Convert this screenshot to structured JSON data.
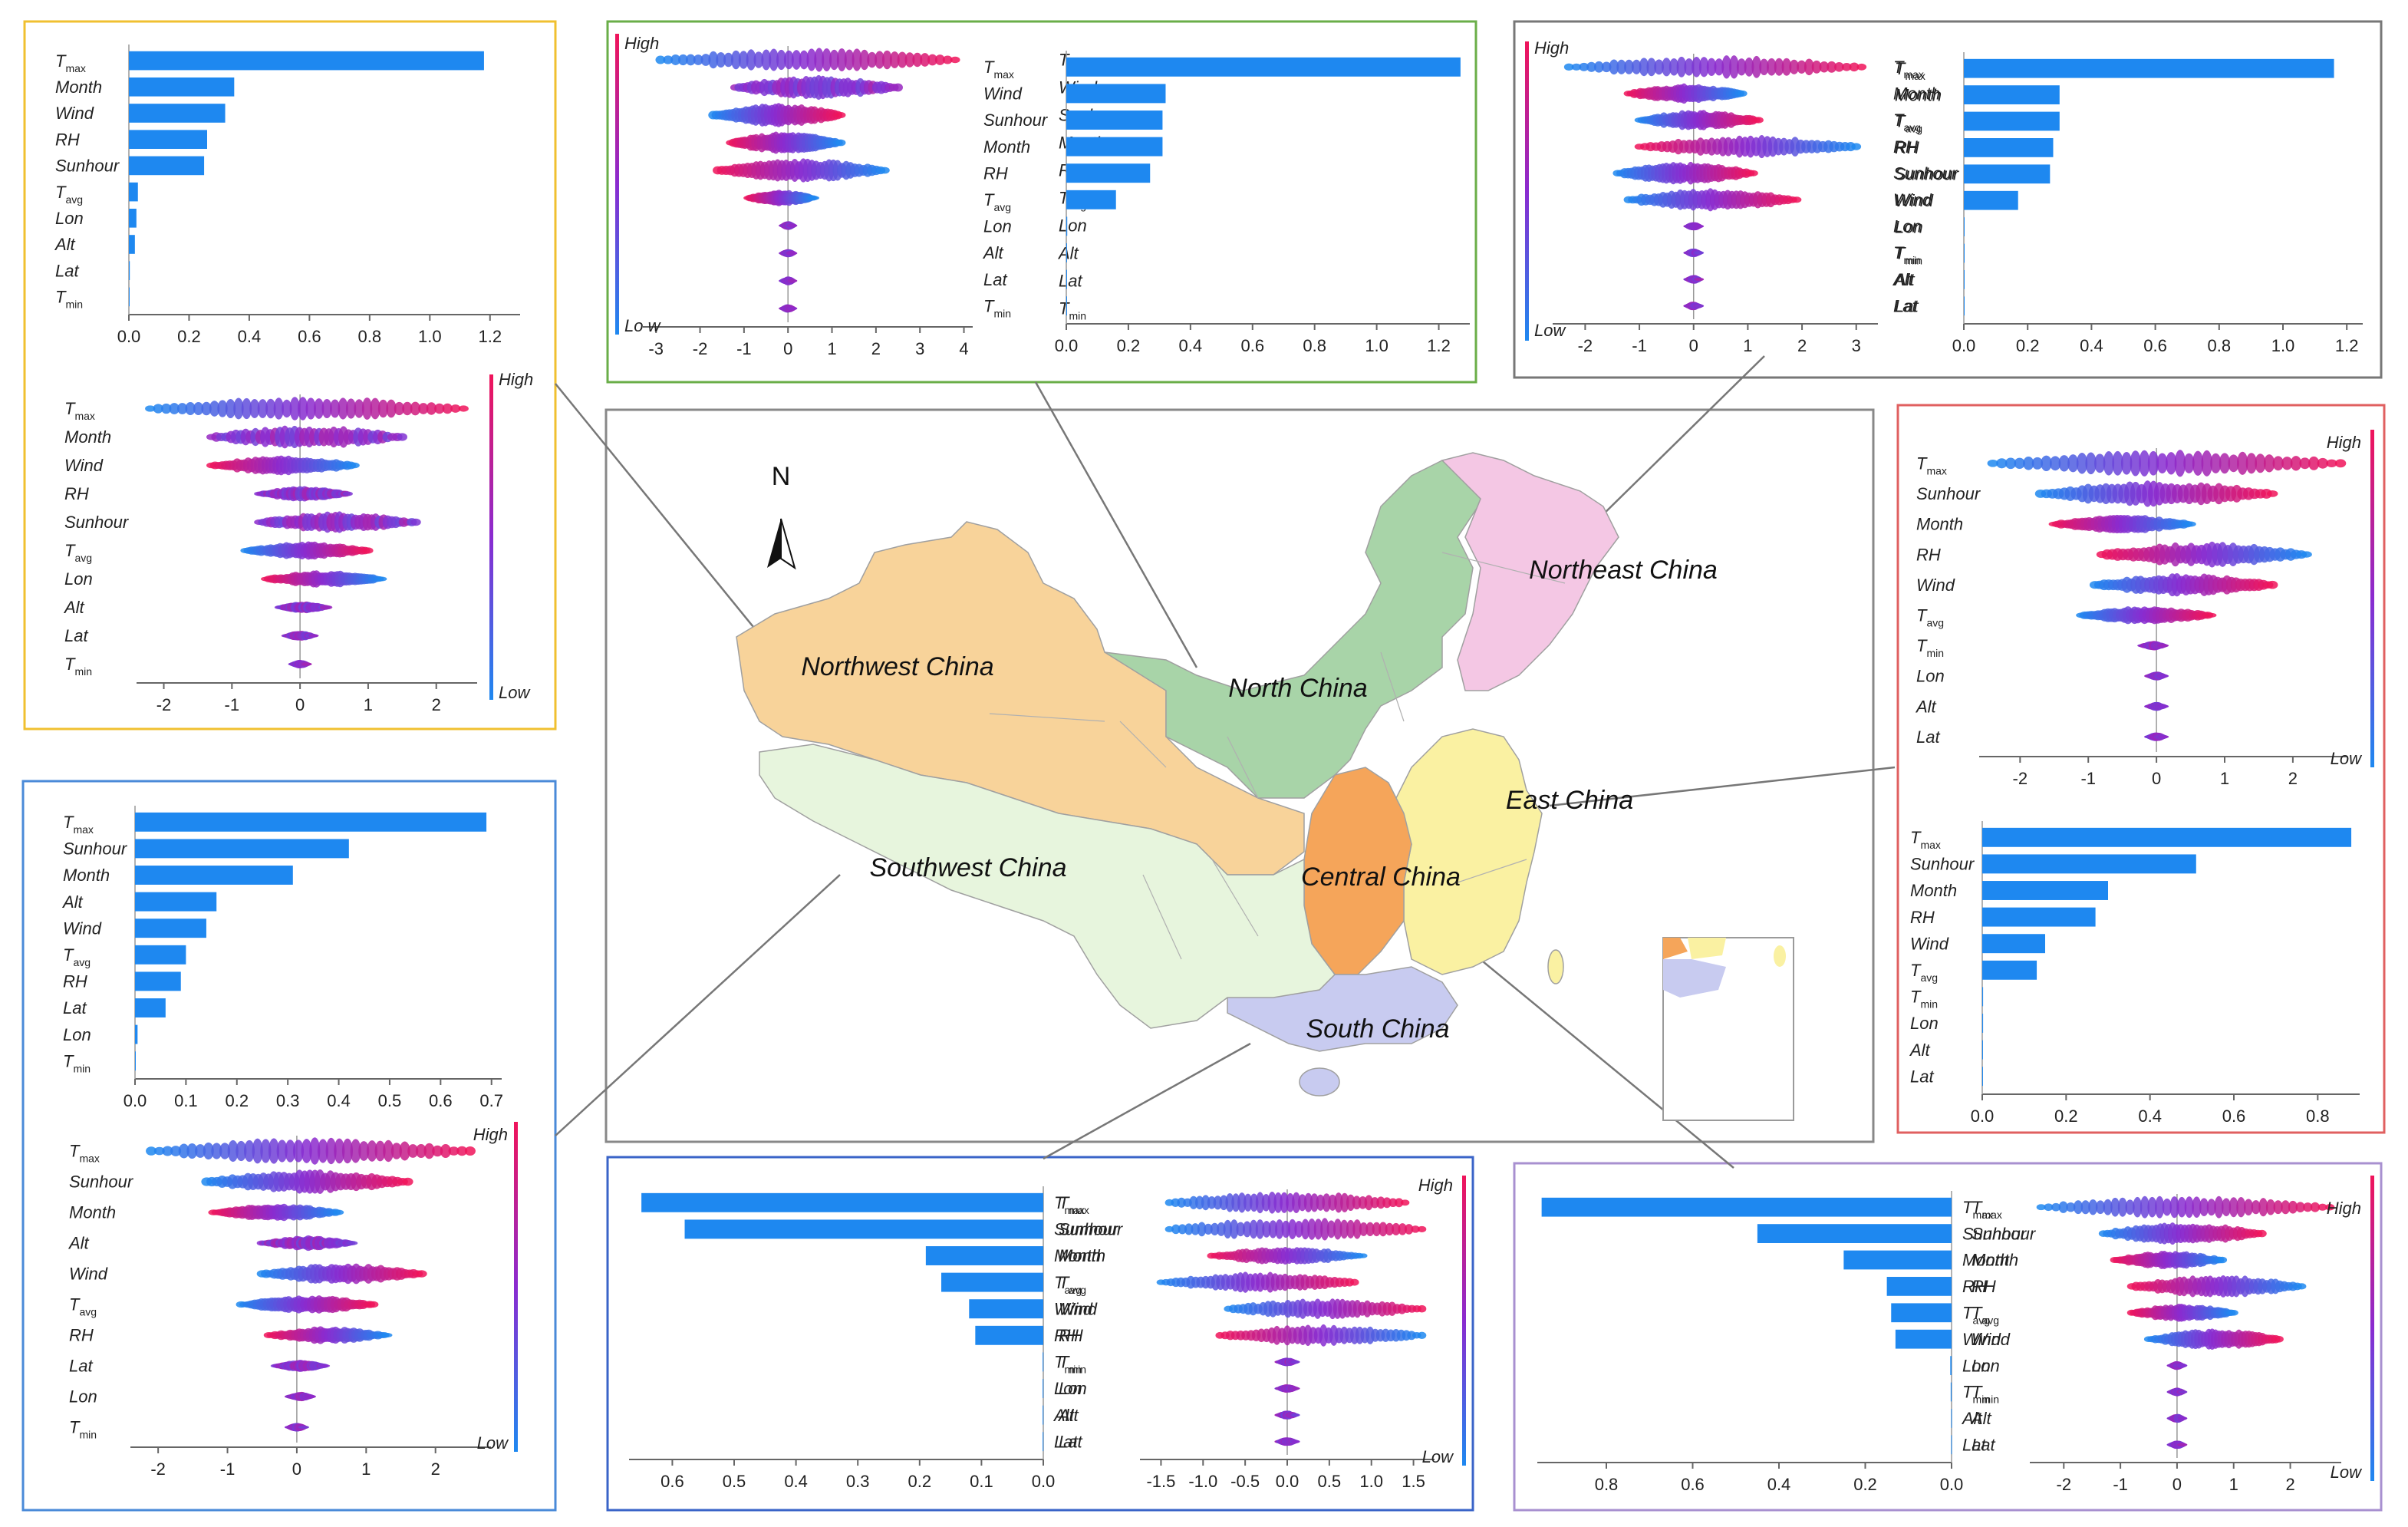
{
  "colors": {
    "bar": "#1E88F0",
    "shap_low": "#1E88F0",
    "shap_high": "#F0145A",
    "frame_northwest": "#F0C030",
    "frame_north": "#6AAE48",
    "frame_northeast": "#777777",
    "frame_east": "#E06060",
    "frame_southwest": "#4A8AD8",
    "frame_south": "#3A64C8",
    "frame_central": "#A890D0",
    "map_frame": "#888888",
    "connector": "#777777",
    "region_northwest": "#F8D39A",
    "region_north": "#A8D4A8",
    "region_northeast": "#F4C7E4",
    "region_east": "#FAF1A2",
    "region_central": "#F5A55A",
    "region_south": "#C8CBF0",
    "region_southwest": "#E7F5DD"
  },
  "legend": {
    "high": "High",
    "low": "Low",
    "low_split": "Lo w"
  },
  "map": {
    "north_arrow": "N",
    "regions": [
      {
        "key": "northwest",
        "label": "Northwest China",
        "color_key": "region_northwest"
      },
      {
        "key": "north",
        "label": "North China",
        "color_key": "region_north"
      },
      {
        "key": "northeast",
        "label": "Northeast China",
        "color_key": "region_northeast"
      },
      {
        "key": "east",
        "label": "East China",
        "color_key": "region_east"
      },
      {
        "key": "central",
        "label": "Central China",
        "color_key": "region_central"
      },
      {
        "key": "south",
        "label": "South China",
        "color_key": "region_south"
      },
      {
        "key": "southwest",
        "label": "Southwest China",
        "color_key": "region_southwest"
      }
    ]
  },
  "chart_data": [
    {
      "type": "bar",
      "region": "Northwest China",
      "title": "",
      "orientation": "horizontal",
      "categories": [
        "T_max",
        "Month",
        "Wind",
        "RH",
        "Sunhour",
        "T_avg",
        "Lon",
        "Alt",
        "Lat",
        "T_min"
      ],
      "values": [
        1.18,
        0.35,
        0.32,
        0.26,
        0.25,
        0.03,
        0.025,
        0.02,
        0.003,
        0.002
      ],
      "xlim": [
        0,
        1.3
      ],
      "xticks": [
        "0.0",
        "0.2",
        "0.4",
        "0.6",
        "0.8",
        "1.0",
        "1.2"
      ],
      "xlabel": "",
      "ylabel": ""
    },
    {
      "type": "scatter",
      "region": "Northwest China",
      "subtype": "shap-beeswarm",
      "categories": [
        "T_max",
        "Month",
        "Wind",
        "RH",
        "Sunhour",
        "T_avg",
        "Lon",
        "Alt",
        "Lat",
        "T_min"
      ],
      "ranges": [
        [
          -2.2,
          2.4
        ],
        [
          -1.3,
          1.5
        ],
        [
          -1.3,
          0.8
        ],
        [
          -0.6,
          0.7
        ],
        [
          -0.6,
          1.7
        ],
        [
          -0.8,
          1.0
        ],
        [
          -0.5,
          1.2
        ],
        [
          -0.3,
          0.4
        ],
        [
          -0.2,
          0.2
        ],
        [
          -0.1,
          0.1
        ]
      ],
      "low_high": [
        "low-high",
        "mixed",
        "high-low",
        "mixed",
        "mixed",
        "low-high",
        "high-low",
        "mixed",
        "mixed",
        "mixed"
      ],
      "xlim": [
        -2.4,
        2.6
      ],
      "xticks": [
        "-2",
        "-1",
        "0",
        "1",
        "2"
      ],
      "colorbar": [
        "High",
        "Low"
      ]
    },
    {
      "type": "scatter",
      "region": "North China",
      "subtype": "shap-beeswarm",
      "categories": [
        "T_max",
        "Wind",
        "Sunhour",
        "Month",
        "RH",
        "T_avg",
        "Lon",
        "Alt",
        "Lat",
        "T_min"
      ],
      "ranges": [
        [
          -2.9,
          3.8
        ],
        [
          -1.2,
          2.5
        ],
        [
          -1.7,
          1.2
        ],
        [
          -1.3,
          1.2
        ],
        [
          -1.6,
          2.2
        ],
        [
          -0.9,
          0.6
        ],
        [
          -0.1,
          0.1
        ],
        [
          -0.1,
          0.1
        ],
        [
          -0.1,
          0.1
        ],
        [
          -0.1,
          0.1
        ]
      ],
      "low_high": [
        "low-high",
        "mixed",
        "low-high",
        "high-low",
        "high-low",
        "high-low",
        "mixed",
        "mixed",
        "mixed",
        "mixed"
      ],
      "xlim": [
        -3.3,
        4.2
      ],
      "xticks": [
        "-3",
        "-2",
        "-1",
        "0",
        "1",
        "2",
        "3",
        "4"
      ],
      "colorbar": [
        "High",
        "Lo w"
      ]
    },
    {
      "type": "bar",
      "region": "North China",
      "orientation": "horizontal",
      "categories": [
        "T_max",
        "Wind",
        "Sunhour",
        "Month",
        "RH",
        "T_avg",
        "Lon",
        "Alt",
        "Lat",
        "T_min"
      ],
      "values": [
        1.27,
        0.32,
        0.31,
        0.31,
        0.27,
        0.16,
        0.003,
        0.002,
        0.002,
        0.001
      ],
      "xlim": [
        0,
        1.3
      ],
      "xticks": [
        "0.0",
        "0.2",
        "0.4",
        "0.6",
        "0.8",
        "1.0",
        "1.2"
      ],
      "xlabel": "",
      "ylabel": ""
    },
    {
      "type": "scatter",
      "region": "Northeast China",
      "subtype": "shap-beeswarm",
      "categories": [
        "T_max",
        "Month",
        "T_avg",
        "RH",
        "Sunhour",
        "Wind",
        "Lon",
        "T_min",
        "Alt",
        "Lat"
      ],
      "ranges": [
        [
          -2.3,
          3.1
        ],
        [
          -1.2,
          0.9
        ],
        [
          -1.0,
          1.2
        ],
        [
          -1.0,
          3.0
        ],
        [
          -1.4,
          1.1
        ],
        [
          -1.2,
          1.9
        ],
        [
          -0.1,
          0.1
        ],
        [
          -0.1,
          0.1
        ],
        [
          -0.1,
          0.1
        ],
        [
          -0.1,
          0.1
        ]
      ],
      "low_high": [
        "low-high",
        "high-low",
        "low-high",
        "high-low",
        "low-high",
        "low-high",
        "mixed",
        "mixed",
        "mixed",
        "mixed"
      ],
      "xlim": [
        -2.6,
        3.4
      ],
      "xticks": [
        "-2",
        "-1",
        "0",
        "1",
        "2",
        "3"
      ],
      "colorbar": [
        "High",
        "Low"
      ]
    },
    {
      "type": "bar",
      "region": "Northeast China",
      "orientation": "horizontal",
      "categories": [
        "T_max",
        "Month",
        "T_avg",
        "RH",
        "Sunhour",
        "Wind",
        "Lon",
        "T_min",
        "Alt",
        "Lat"
      ],
      "values": [
        1.16,
        0.3,
        0.3,
        0.28,
        0.27,
        0.17,
        0.002,
        0.002,
        0.001,
        0.001
      ],
      "xlim": [
        0,
        1.25
      ],
      "xticks": [
        "0.0",
        "0.2",
        "0.4",
        "0.6",
        "0.8",
        "1.0",
        "1.2"
      ],
      "xlabel": "",
      "ylabel": ""
    },
    {
      "type": "scatter",
      "region": "East China",
      "subtype": "shap-beeswarm",
      "categories": [
        "T_max",
        "Sunhour",
        "Month",
        "RH",
        "Wind",
        "T_avg",
        "T_min",
        "Lon",
        "Alt",
        "Lat"
      ],
      "ranges": [
        [
          -2.4,
          2.7
        ],
        [
          -1.7,
          1.7
        ],
        [
          -1.5,
          0.5
        ],
        [
          -0.8,
          2.2
        ],
        [
          -0.9,
          1.7
        ],
        [
          -1.1,
          0.8
        ],
        [
          -0.2,
          0.1
        ],
        [
          -0.1,
          0.1
        ],
        [
          -0.1,
          0.1
        ],
        [
          -0.1,
          0.1
        ]
      ],
      "low_high": [
        "low-high",
        "low-high",
        "high-low",
        "high-low",
        "low-high",
        "low-high",
        "mixed",
        "mixed",
        "mixed",
        "mixed"
      ],
      "xlim": [
        -2.6,
        2.8
      ],
      "xticks": [
        "-2",
        "-1",
        "0",
        "1",
        "2"
      ],
      "colorbar": [
        "High",
        "Low"
      ]
    },
    {
      "type": "bar",
      "region": "East China",
      "orientation": "horizontal",
      "categories": [
        "T_max",
        "Sunhour",
        "Month",
        "RH",
        "Wind",
        "T_avg",
        "T_min",
        "Lon",
        "Alt",
        "Lat"
      ],
      "values": [
        0.88,
        0.51,
        0.3,
        0.27,
        0.15,
        0.13,
        0.002,
        0.002,
        0.001,
        0.001
      ],
      "xlim": [
        0,
        0.9
      ],
      "xticks": [
        "0.0",
        "0.2",
        "0.4",
        "0.6",
        "0.8"
      ],
      "xlabel": "",
      "ylabel": ""
    },
    {
      "type": "bar",
      "region": "Southwest China",
      "orientation": "horizontal",
      "categories": [
        "T_max",
        "Sunhour",
        "Month",
        "Alt",
        "Wind",
        "T_avg",
        "RH",
        "Lat",
        "Lon",
        "T_min"
      ],
      "values": [
        0.69,
        0.42,
        0.31,
        0.16,
        0.14,
        0.1,
        0.09,
        0.06,
        0.005,
        0.001
      ],
      "xlim": [
        0,
        0.72
      ],
      "xticks": [
        "0.0",
        "0.1",
        "0.2",
        "0.3",
        "0.4",
        "0.5",
        "0.6",
        "0.7"
      ],
      "xlabel": "",
      "ylabel": ""
    },
    {
      "type": "scatter",
      "region": "Southwest China",
      "subtype": "shap-beeswarm",
      "categories": [
        "T_max",
        "Sunhour",
        "Month",
        "Alt",
        "Wind",
        "T_avg",
        "RH",
        "Lat",
        "Lon",
        "T_min"
      ],
      "ranges": [
        [
          -2.1,
          2.5
        ],
        [
          -1.3,
          1.6
        ],
        [
          -1.2,
          0.6
        ],
        [
          -0.5,
          0.8
        ],
        [
          -0.5,
          1.8
        ],
        [
          -0.8,
          1.1
        ],
        [
          -0.4,
          1.3
        ],
        [
          -0.3,
          0.4
        ],
        [
          -0.1,
          0.2
        ],
        [
          -0.1,
          0.1
        ]
      ],
      "low_high": [
        "low-high",
        "low-high",
        "high-low",
        "mixed",
        "low-high",
        "low-high",
        "high-low",
        "mixed",
        "mixed",
        "mixed"
      ],
      "xlim": [
        -2.4,
        2.8
      ],
      "xticks": [
        "-2",
        "-1",
        "0",
        "1",
        "2"
      ],
      "colorbar": [
        "High",
        "Low"
      ]
    },
    {
      "type": "bar",
      "region": "South China",
      "orientation": "horizontal-reversed",
      "categories": [
        "T_max",
        "Sunhour",
        "Month",
        "T_avg",
        "Wind",
        "RH",
        "T_min",
        "Lon",
        "Alt",
        "Lat"
      ],
      "values": [
        0.65,
        0.58,
        0.19,
        0.165,
        0.12,
        0.11,
        0.001,
        0.001,
        0.001,
        0.001
      ],
      "xlim": [
        0.67,
        0
      ],
      "xticks": [
        "0.6",
        "0.5",
        "0.4",
        "0.3",
        "0.2",
        "0.1",
        "0.0"
      ],
      "xlabel": "",
      "ylabel": ""
    },
    {
      "type": "scatter",
      "region": "South China",
      "subtype": "shap-beeswarm",
      "categories": [
        "T_max",
        "Sunhour",
        "Month",
        "T_avg",
        "Wind",
        "RH",
        "T_min",
        "Lon",
        "Alt",
        "Lat"
      ],
      "ranges": [
        [
          -1.4,
          1.4
        ],
        [
          -1.4,
          1.6
        ],
        [
          -0.9,
          0.9
        ],
        [
          -1.5,
          0.8
        ],
        [
          -0.7,
          1.6
        ],
        [
          -0.8,
          1.6
        ],
        [
          -0.1,
          0.1
        ],
        [
          -0.1,
          0.1
        ],
        [
          -0.1,
          0.1
        ],
        [
          -0.1,
          0.1
        ]
      ],
      "low_high": [
        "low-high",
        "low-high",
        "high-low",
        "low-high",
        "low-high",
        "high-low",
        "mixed",
        "mixed",
        "mixed",
        "mixed"
      ],
      "xlim": [
        -1.75,
        1.75
      ],
      "xticks": [
        "-1.5",
        "-1.0",
        "-0.5",
        "0.0",
        "0.5",
        "1.0",
        "1.5"
      ],
      "colorbar": [
        "High",
        "Low"
      ]
    },
    {
      "type": "bar",
      "region": "Central China",
      "orientation": "horizontal-reversed",
      "categories": [
        "T_max",
        "Sunhour",
        "Month",
        "RH",
        "T_avg",
        "Wind",
        "Lon",
        "T_min",
        "Alt",
        "Lat"
      ],
      "values": [
        0.95,
        0.45,
        0.25,
        0.15,
        0.14,
        0.13,
        0.003,
        0.002,
        0.001,
        0.001
      ],
      "xlim": [
        0.96,
        0
      ],
      "xticks": [
        "0.8",
        "0.6",
        "0.4",
        "0.2",
        "0.0"
      ],
      "xlabel": "",
      "ylabel": ""
    },
    {
      "type": "scatter",
      "region": "Central China",
      "subtype": "shap-beeswarm",
      "categories": [
        "T_max",
        "Sunhour",
        "Month",
        "RH",
        "T_avg",
        "Wind",
        "Lon",
        "T_min",
        "Alt",
        "Lat"
      ],
      "ranges": [
        [
          -2.4,
          2.7
        ],
        [
          -1.3,
          1.5
        ],
        [
          -1.1,
          0.8
        ],
        [
          -0.8,
          2.2
        ],
        [
          -0.8,
          1.0
        ],
        [
          -0.5,
          1.8
        ],
        [
          -0.1,
          0.1
        ],
        [
          -0.1,
          0.1
        ],
        [
          -0.1,
          0.1
        ],
        [
          -0.1,
          0.1
        ]
      ],
      "low_high": [
        "low-high",
        "low-high",
        "high-low",
        "high-low",
        "high-low",
        "low-high",
        "mixed",
        "mixed",
        "mixed",
        "mixed"
      ],
      "xlim": [
        -2.6,
        2.9
      ],
      "xticks": [
        "-2",
        "-1",
        "0",
        "1",
        "2"
      ],
      "colorbar": [
        "High",
        "Low"
      ]
    }
  ]
}
